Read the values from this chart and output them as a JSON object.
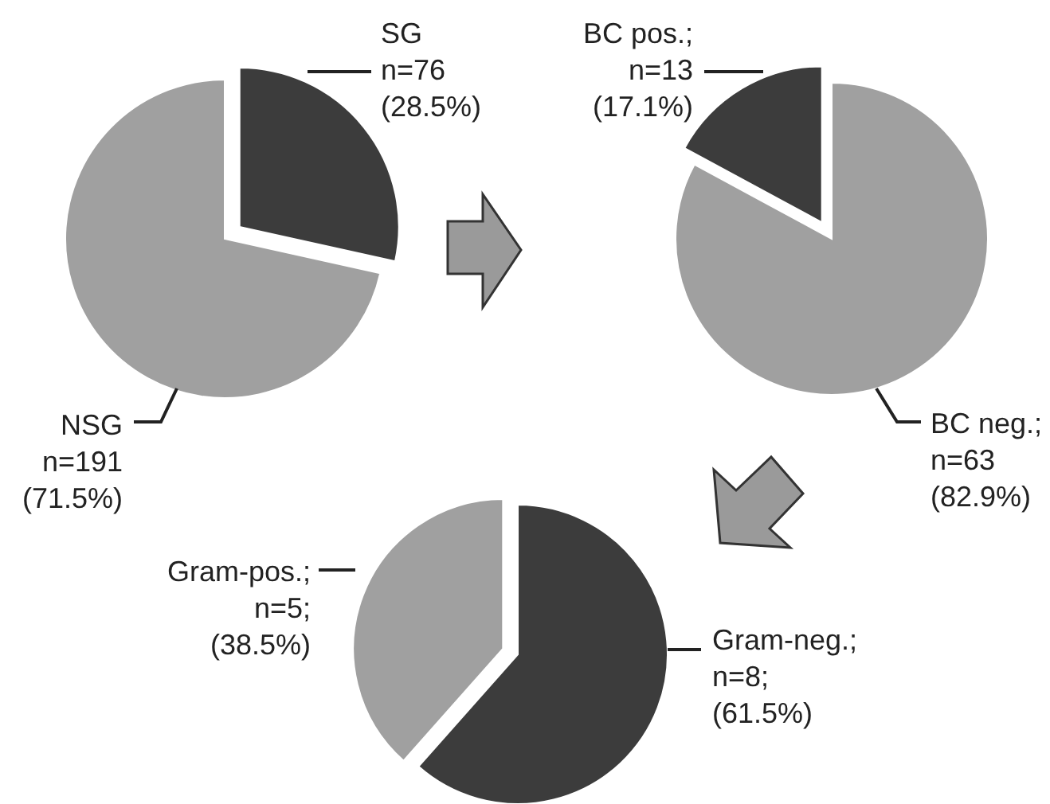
{
  "chart_data": [
    {
      "type": "pie",
      "categories": [
        "SG",
        "NSG"
      ],
      "values": [
        76,
        191
      ],
      "colors": [
        "#3c3c3c",
        "#a0a0a0"
      ],
      "value_labels": [
        "\nn=76\n(28.5%)",
        "\nn=191\n(71.5%)"
      ]
    },
    {
      "type": "pie",
      "categories": [
        "BC pos.",
        "BC neg."
      ],
      "values": [
        13,
        63
      ],
      "colors": [
        "#3c3c3c",
        "#a0a0a0"
      ],
      "value_labels": [
        ";\nn=13\n(17.1%)",
        ";\nn=63\n(82.9%)"
      ]
    },
    {
      "type": "pie",
      "categories": [
        "Gram-pos.",
        "Gram-neg."
      ],
      "values": [
        5,
        8
      ],
      "colors": [
        "#a0a0a0",
        "#3c3c3c"
      ],
      "value_labels": [
        ";\nn=5;\n(38.5%)",
        ";\nn=8;\n(61.5%)"
      ]
    }
  ]
}
